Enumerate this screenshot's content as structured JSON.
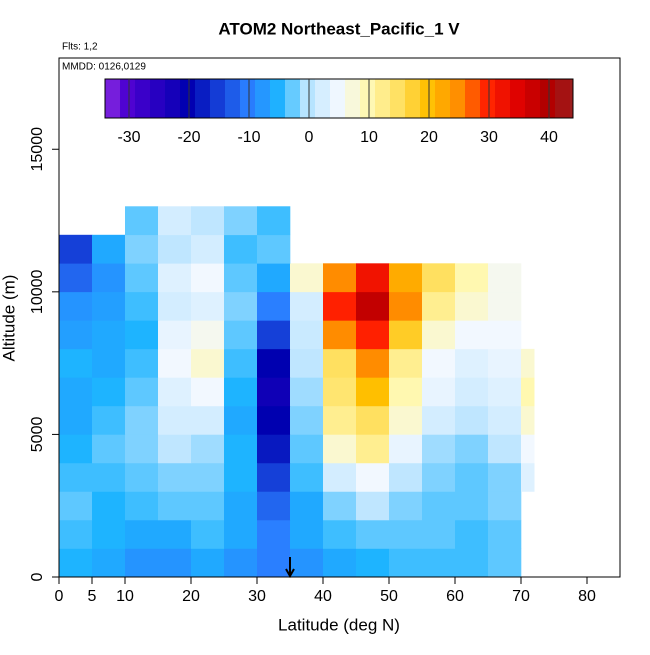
{
  "chart_data": {
    "type": "heatmap",
    "title": "ATOM2 Northeast_Pacific_1 V",
    "notes": [
      "Flts: 1,2",
      "MMDD: 0126,0129"
    ],
    "xlabel": "Latitude (deg N)",
    "ylabel": "Altitude (m)",
    "xlim": [
      0,
      85
    ],
    "xticks": [
      0,
      5,
      10,
      20,
      30,
      40,
      50,
      60,
      70,
      80
    ],
    "ylim": [
      0,
      18200
    ],
    "yticks": [
      0,
      5000,
      10000,
      15000
    ],
    "xbins": [
      0,
      5,
      10,
      15,
      20,
      25,
      30,
      35,
      40,
      45,
      50,
      55,
      60,
      65,
      70,
      72
    ],
    "ybins": [
      0,
      1000,
      2000,
      3000,
      4000,
      5000,
      6000,
      7000,
      8000,
      9000,
      10000,
      11000,
      12000,
      13000
    ],
    "z": [
      [
        -5,
        -6,
        -8,
        -8,
        -6,
        -8,
        -10,
        -8,
        -6,
        -5,
        -4,
        -4,
        -4,
        -3,
        null
      ],
      [
        -4,
        -5,
        -6,
        -6,
        -4,
        -6,
        -10,
        -6,
        -4,
        -3,
        -3,
        -3,
        -4,
        -3,
        null
      ],
      [
        -3,
        -5,
        -4,
        -3,
        -3,
        -6,
        -12,
        -6,
        -2,
        0,
        -2,
        -3,
        -3,
        -2,
        null
      ],
      [
        -4,
        -4,
        -3,
        -2,
        -2,
        -5,
        -15,
        -4,
        2,
        5,
        0,
        -2,
        -3,
        -2,
        3
      ],
      [
        -5,
        -3,
        -2,
        0,
        -1,
        -5,
        -18,
        -3,
        8,
        12,
        4,
        -1,
        -2,
        0,
        5
      ],
      [
        -6,
        -4,
        -2,
        2,
        2,
        -6,
        -20,
        -2,
        12,
        15,
        8,
        2,
        0,
        2,
        8
      ],
      [
        -6,
        -5,
        -3,
        3,
        5,
        -5,
        -22,
        -1,
        14,
        20,
        10,
        4,
        2,
        3,
        10
      ],
      [
        -5,
        -6,
        -4,
        5,
        8,
        -4,
        -20,
        0,
        15,
        25,
        12,
        5,
        3,
        4,
        8
      ],
      [
        -7,
        -6,
        -5,
        4,
        6,
        -3,
        -15,
        1,
        25,
        30,
        18,
        8,
        5,
        5,
        null
      ],
      [
        -8,
        -7,
        -4,
        2,
        3,
        -2,
        -10,
        2,
        30,
        38,
        25,
        12,
        8,
        6,
        null
      ],
      [
        -12,
        -8,
        -3,
        3,
        5,
        -3,
        -6,
        8,
        25,
        32,
        22,
        15,
        10,
        6,
        null
      ],
      [
        -15,
        -6,
        -2,
        0,
        2,
        -4,
        -3,
        null,
        null,
        null,
        null,
        null,
        null,
        null,
        null
      ],
      [
        null,
        null,
        -3,
        2,
        0,
        -2,
        -4,
        null,
        null,
        null,
        null,
        null,
        null,
        null,
        null
      ]
    ],
    "colorbar_lim": [
      -34,
      44
    ],
    "colorbar_ticks": [
      -30,
      -20,
      -10,
      0,
      10,
      20,
      30,
      40
    ],
    "colorscale": [
      [
        -34,
        "#8a2be2"
      ],
      [
        -30,
        "#4b00d0"
      ],
      [
        -20,
        "#0000b0"
      ],
      [
        -10,
        "#2a7fff"
      ],
      [
        -5,
        "#1eb4ff"
      ],
      [
        0,
        "#bfe6ff"
      ],
      [
        5,
        "#f2f8ff"
      ],
      [
        10,
        "#fff8b0"
      ],
      [
        15,
        "#ffe060"
      ],
      [
        20,
        "#ffbf00"
      ],
      [
        25,
        "#ff8c00"
      ],
      [
        30,
        "#ff2000"
      ],
      [
        35,
        "#dd0000"
      ],
      [
        40,
        "#b00000"
      ],
      [
        44,
        "#9a2020"
      ]
    ],
    "marker_x": 35
  }
}
